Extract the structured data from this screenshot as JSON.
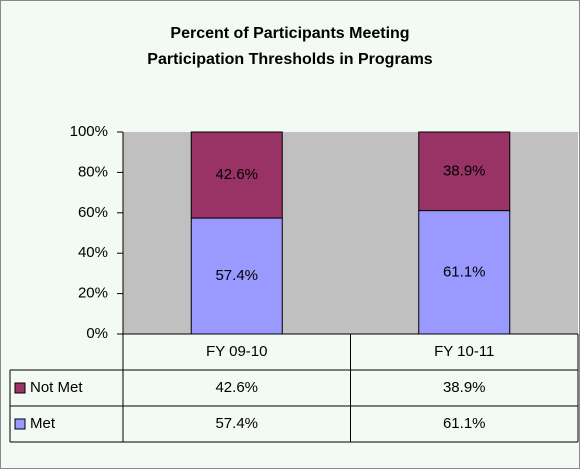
{
  "chart_data": {
    "type": "stacked_bar",
    "title": [
      "Percent of Participants Meeting",
      "Participation Thresholds in Programs"
    ],
    "categories": [
      "FY 09-10",
      "FY 10-11"
    ],
    "series": [
      {
        "name": "Met",
        "color": "#9999ff",
        "values": [
          57.4,
          61.1
        ],
        "value_labels": [
          "57.4%",
          "61.1%"
        ]
      },
      {
        "name": "Not Met",
        "color": "#993366",
        "values": [
          42.6,
          38.9
        ],
        "value_labels": [
          "42.6%",
          "38.9%"
        ]
      }
    ],
    "ylim": [
      0,
      100
    ],
    "yticks": [
      {
        "value": 0,
        "label": "0%"
      },
      {
        "value": 20,
        "label": "20%"
      },
      {
        "value": 40,
        "label": "40%"
      },
      {
        "value": 60,
        "label": "60%"
      },
      {
        "value": 80,
        "label": "80%"
      },
      {
        "value": 100,
        "label": "100%"
      }
    ],
    "grid": false,
    "data_table": true
  }
}
